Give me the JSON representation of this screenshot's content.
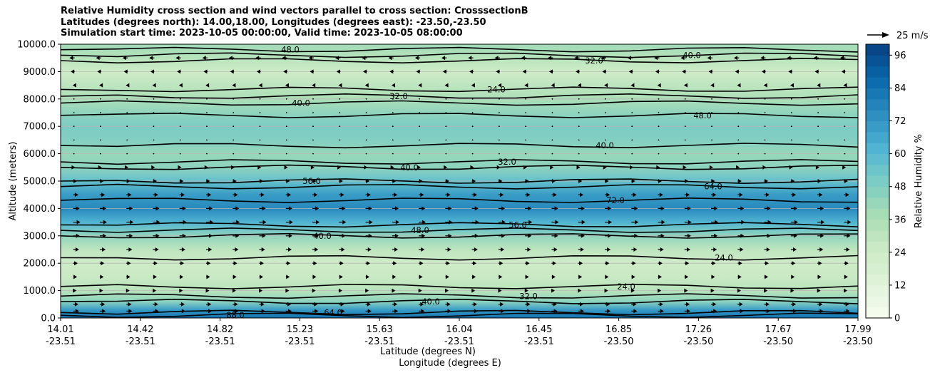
{
  "chart_data": {
    "type": "heatmap",
    "title_lines": [
      "Relative Humidity cross section and wind vectors parallel to cross section: CrosssectionB",
      "Latitudes (degrees north): 14.00,18.00, Longitudes (degrees east): -23.50,-23.50",
      "Simulation start time: 2023-10-05 00:00:00, Valid time: 2023-10-05 08:00:00"
    ],
    "ylabel": "Altitude (meters)",
    "xlabel": "Latitude (degrees N)",
    "xlabel2": "Longitude (degrees E)",
    "ylim": [
      0,
      10000
    ],
    "y_ticks": [
      "0.0",
      "1000.0",
      "2000.0",
      "3000.0",
      "4000.0",
      "5000.0",
      "6000.0",
      "7000.0",
      "8000.0",
      "9000.0",
      "10000.0"
    ],
    "x_tick_lat": [
      "14.01",
      "14.42",
      "14.82",
      "15.23",
      "15.63",
      "16.04",
      "16.45",
      "16.85",
      "17.26",
      "17.67",
      "17.99"
    ],
    "x_tick_lon": [
      "-23.51",
      "-23.51",
      "-23.51",
      "-23.51",
      "-23.51",
      "-23.51",
      "-23.51",
      "-23.50",
      "-23.50",
      "-23.50",
      "-23.50"
    ],
    "colorbar": {
      "label": "Relative Humidity %",
      "ticks": [
        "0",
        "12",
        "24",
        "36",
        "48",
        "60",
        "72",
        "84",
        "96"
      ],
      "range": [
        0,
        100
      ],
      "colormap": "GnBu"
    },
    "quiver_key": "25 m/s",
    "grid": true,
    "rh_profile": [
      {
        "z": 0,
        "rh": 84
      },
      {
        "z": 300,
        "rh": 70
      },
      {
        "z": 600,
        "rh": 45
      },
      {
        "z": 1000,
        "rh": 32
      },
      {
        "z": 1500,
        "rh": 26
      },
      {
        "z": 2000,
        "rh": 24
      },
      {
        "z": 2500,
        "rh": 30
      },
      {
        "z": 3000,
        "rh": 44
      },
      {
        "z": 3500,
        "rh": 62
      },
      {
        "z": 4000,
        "rh": 76
      },
      {
        "z": 4500,
        "rh": 70
      },
      {
        "z": 5000,
        "rh": 56
      },
      {
        "z": 5500,
        "rh": 45
      },
      {
        "z": 6000,
        "rh": 42
      },
      {
        "z": 6500,
        "rh": 48
      },
      {
        "z": 7000,
        "rh": 50
      },
      {
        "z": 7500,
        "rh": 44
      },
      {
        "z": 8000,
        "rh": 36
      },
      {
        "z": 8500,
        "rh": 30
      },
      {
        "z": 9000,
        "rh": 24
      },
      {
        "z": 9500,
        "rh": 32
      },
      {
        "z": 10000,
        "rh": 40
      }
    ],
    "contour_lines": [
      {
        "level": "88.0",
        "z": 100
      },
      {
        "level": "64.0",
        "z": 200
      },
      {
        "level": "40.0",
        "z": 600
      },
      {
        "level": "32.0",
        "z": 800
      },
      {
        "level": "24.0",
        "z": 1150
      },
      {
        "level": "24.0",
        "z": 2200
      },
      {
        "level": "40.0",
        "z": 3000
      },
      {
        "level": "48.0",
        "z": 3200
      },
      {
        "level": "56.0",
        "z": 3400
      },
      {
        "level": "72.0",
        "z": 4300
      },
      {
        "level": "64.0",
        "z": 4800
      },
      {
        "level": "56.0",
        "z": 5000
      },
      {
        "level": "40.0",
        "z": 5500
      },
      {
        "level": "32.0",
        "z": 5700
      },
      {
        "level": "40.0",
        "z": 6300
      },
      {
        "level": "48.0",
        "z": 7400
      },
      {
        "level": "40.0",
        "z": 7850
      },
      {
        "level": "32.0",
        "z": 8100
      },
      {
        "level": "24.0",
        "z": 8350
      },
      {
        "level": "32.0",
        "z": 9400
      },
      {
        "level": "40.0",
        "z": 9600
      },
      {
        "level": "48.0",
        "z": 9800
      }
    ],
    "wind_rows": [
      {
        "z": 250,
        "u": 0.8
      },
      {
        "z": 500,
        "u": 0.7
      },
      {
        "z": 1000,
        "u": 0.4
      },
      {
        "z": 1500,
        "u": 0.5
      },
      {
        "z": 2000,
        "u": 0.6
      },
      {
        "z": 2500,
        "u": 0.8
      },
      {
        "z": 3000,
        "u": 0.9
      },
      {
        "z": 3500,
        "u": 1.0
      },
      {
        "z": 4000,
        "u": 0.9
      },
      {
        "z": 4500,
        "u": 0.7
      },
      {
        "z": 5000,
        "u": 0.5
      },
      {
        "z": 5500,
        "u": 0.2
      },
      {
        "z": 6000,
        "u": 0.05
      },
      {
        "z": 6500,
        "u": 0.05
      },
      {
        "z": 7000,
        "u": 0.05
      },
      {
        "z": 7500,
        "u": 0.05
      },
      {
        "z": 8000,
        "u": 0.1
      },
      {
        "z": 8500,
        "u": -0.2
      },
      {
        "z": 9000,
        "u": -0.5
      },
      {
        "z": 9500,
        "u": -0.7
      }
    ]
  }
}
